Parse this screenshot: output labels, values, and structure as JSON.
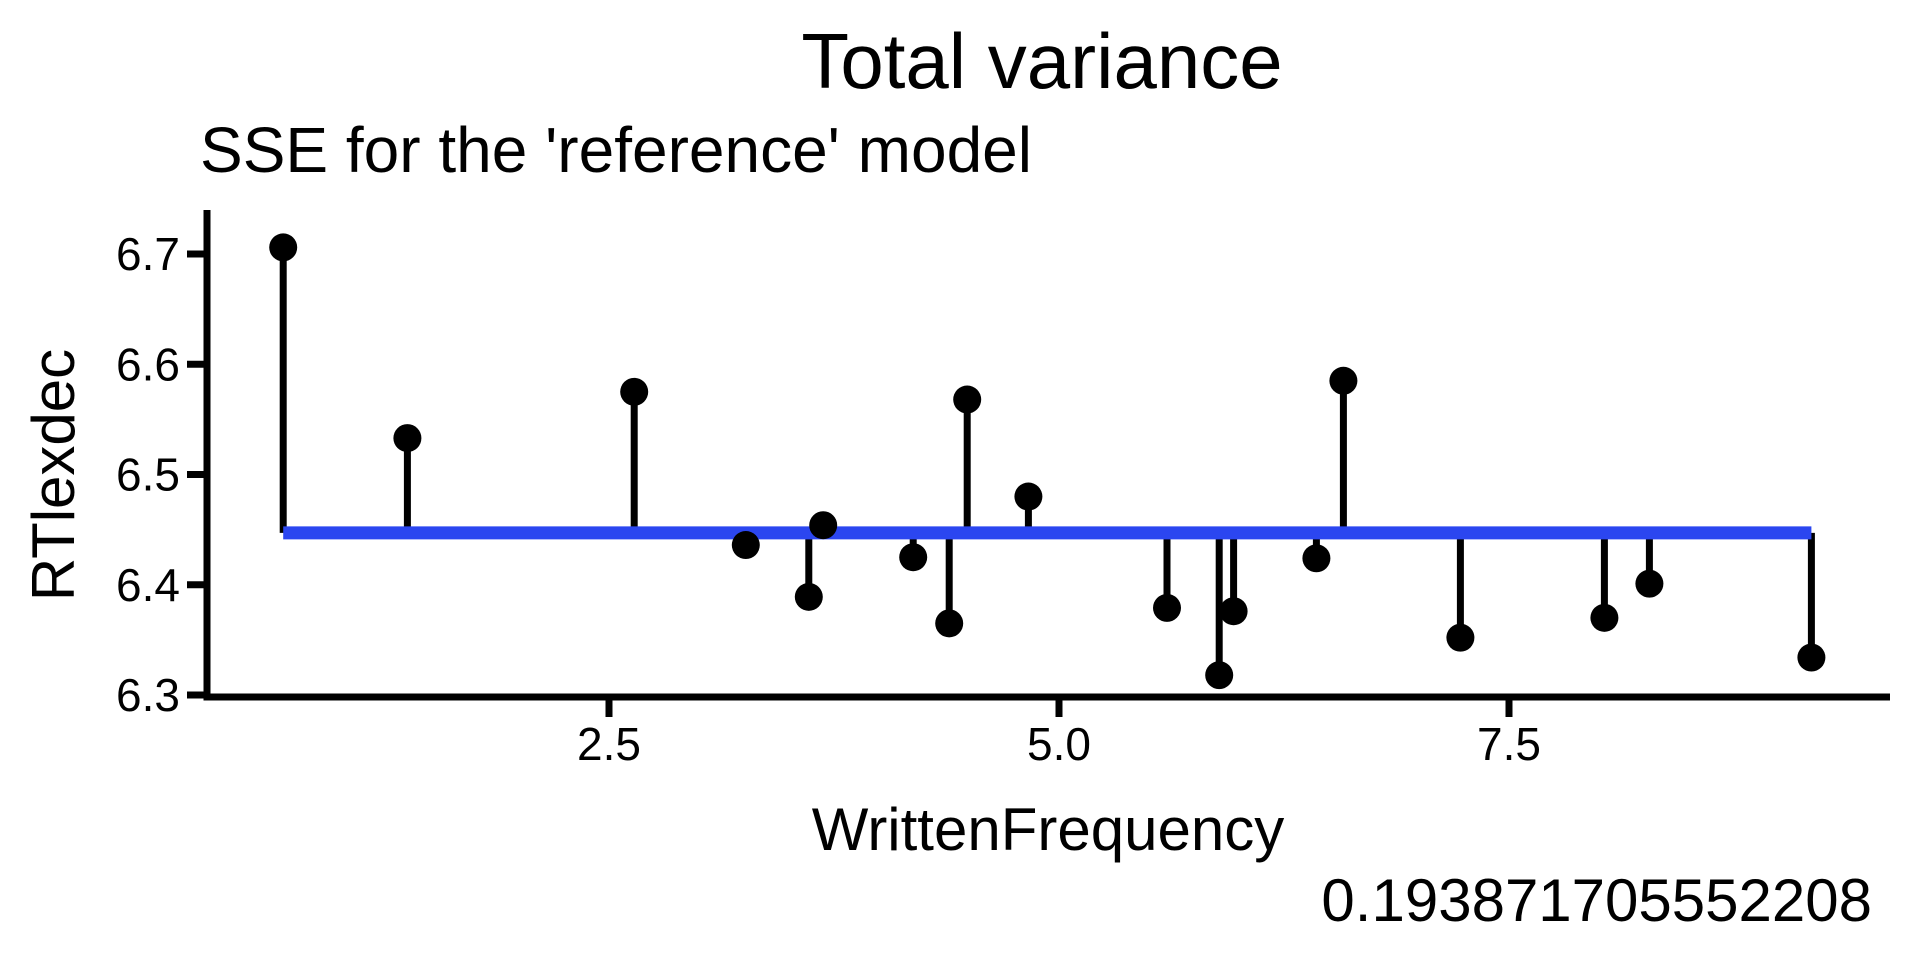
{
  "figure": {
    "background": "#ffffff",
    "foreground": "#000000"
  },
  "chart_data": {
    "type": "scatter",
    "title": "Total variance",
    "subtitle": "SSE for the 'reference' model",
    "xlabel": "WrittenFrequency",
    "ylabel": "RTlexdec",
    "sse_annotation": "0.193871705552208",
    "grid": false,
    "legend": "none",
    "xlim": [
      0.27,
      9.62
    ],
    "ylim": [
      6.3,
      6.74
    ],
    "x_ticks": {
      "values": [
        2.5,
        5.0,
        7.5
      ],
      "labels": [
        "2.5",
        "5.0",
        "7.5"
      ]
    },
    "y_ticks": {
      "values": [
        6.3,
        6.4,
        6.5,
        6.6,
        6.7
      ],
      "labels": [
        "6.3",
        "6.4",
        "6.5",
        "6.6",
        "6.7"
      ]
    },
    "reference_line": {
      "orientation": "horizontal",
      "value": 6.447,
      "x_start": 0.69,
      "x_end": 9.18,
      "color": "#2b46f0"
    },
    "residual_color": "#000000",
    "point_color": "#000000",
    "points": [
      {
        "x": 0.69,
        "y": 6.706
      },
      {
        "x": 1.38,
        "y": 6.533
      },
      {
        "x": 2.64,
        "y": 6.575
      },
      {
        "x": 3.26,
        "y": 6.436
      },
      {
        "x": 3.61,
        "y": 6.389
      },
      {
        "x": 3.69,
        "y": 6.454
      },
      {
        "x": 4.19,
        "y": 6.425
      },
      {
        "x": 4.39,
        "y": 6.365
      },
      {
        "x": 4.49,
        "y": 6.568
      },
      {
        "x": 4.83,
        "y": 6.48
      },
      {
        "x": 5.6,
        "y": 6.379
      },
      {
        "x": 5.89,
        "y": 6.318
      },
      {
        "x": 5.97,
        "y": 6.376
      },
      {
        "x": 6.43,
        "y": 6.424
      },
      {
        "x": 6.58,
        "y": 6.585
      },
      {
        "x": 7.23,
        "y": 6.352
      },
      {
        "x": 8.03,
        "y": 6.37
      },
      {
        "x": 8.28,
        "y": 6.401
      },
      {
        "x": 9.18,
        "y": 6.334
      }
    ]
  }
}
